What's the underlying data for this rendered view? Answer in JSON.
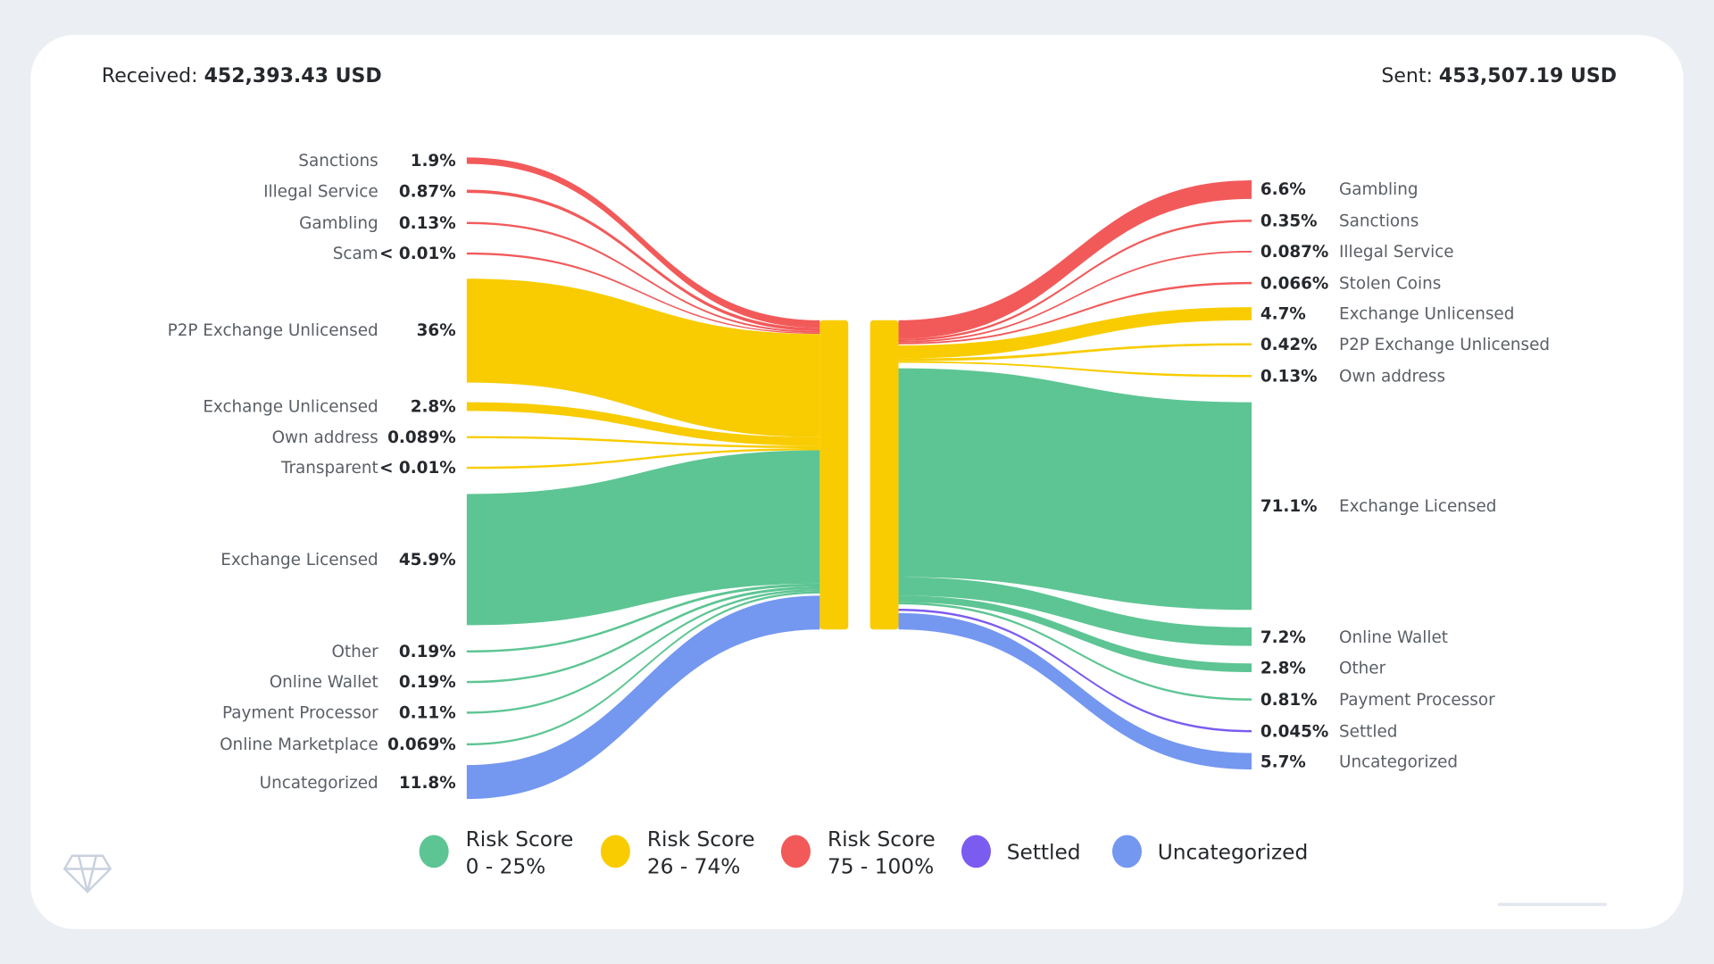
{
  "header": {
    "received_label": "Received:",
    "received_value": "452,393.43 USD",
    "sent_label": "Sent:",
    "sent_value": "453,507.19 USD"
  },
  "colors": {
    "risk_low": "#5DC593",
    "risk_medium": "#F8CC00",
    "risk_high": "#F25A5A",
    "settled": "#7B5CF0",
    "uncategorized": "#7497F0",
    "background": "#EBEEF3"
  },
  "logo_icon": "diamond-icon",
  "chart_data": {
    "type": "sankey",
    "received": [
      {
        "label": "Sanctions",
        "pct": "1.9%",
        "category": "risk_high"
      },
      {
        "label": "Illegal Service",
        "pct": "0.87%",
        "category": "risk_high"
      },
      {
        "label": "Gambling",
        "pct": "0.13%",
        "category": "risk_high"
      },
      {
        "label": "Scam",
        "pct": "< 0.01%",
        "category": "risk_high"
      },
      {
        "label": "P2P Exchange Unlicensed",
        "pct": "36%",
        "category": "risk_medium"
      },
      {
        "label": "Exchange Unlicensed",
        "pct": "2.8%",
        "category": "risk_medium"
      },
      {
        "label": "Own address",
        "pct": "0.089%",
        "category": "risk_medium"
      },
      {
        "label": "Transparent",
        "pct": "< 0.01%",
        "category": "risk_medium"
      },
      {
        "label": "Exchange Licensed",
        "pct": "45.9%",
        "category": "risk_low"
      },
      {
        "label": "Other",
        "pct": "0.19%",
        "category": "risk_low"
      },
      {
        "label": "Online Wallet",
        "pct": "0.19%",
        "category": "risk_low"
      },
      {
        "label": "Payment Processor",
        "pct": "0.11%",
        "category": "risk_low"
      },
      {
        "label": "Online Marketplace",
        "pct": "0.069%",
        "category": "risk_low"
      },
      {
        "label": "Uncategorized",
        "pct": "11.8%",
        "category": "uncategorized"
      }
    ],
    "sent": [
      {
        "label": "Gambling",
        "pct": "6.6%",
        "category": "risk_high"
      },
      {
        "label": "Sanctions",
        "pct": "0.35%",
        "category": "risk_high"
      },
      {
        "label": "Illegal Service",
        "pct": "0.087%",
        "category": "risk_high"
      },
      {
        "label": "Stolen Coins",
        "pct": "0.066%",
        "category": "risk_high"
      },
      {
        "label": "Exchange Unlicensed",
        "pct": "4.7%",
        "category": "risk_medium"
      },
      {
        "label": "P2P Exchange Unlicensed",
        "pct": "0.42%",
        "category": "risk_medium"
      },
      {
        "label": "Own address",
        "pct": "0.13%",
        "category": "risk_medium"
      },
      {
        "label": "Exchange Licensed",
        "pct": "71.1%",
        "category": "risk_low"
      },
      {
        "label": "Online Wallet",
        "pct": "7.2%",
        "category": "risk_low"
      },
      {
        "label": "Other",
        "pct": "2.8%",
        "category": "risk_low"
      },
      {
        "label": "Payment Processor",
        "pct": "0.81%",
        "category": "risk_low"
      },
      {
        "label": "Settled",
        "pct": "0.045%",
        "category": "settled"
      },
      {
        "label": "Uncategorized",
        "pct": "5.7%",
        "category": "uncategorized"
      }
    ],
    "legend": [
      {
        "line1": "Risk Score",
        "line2": "0 - 25%",
        "category": "risk_low"
      },
      {
        "line1": "Risk Score",
        "line2": "26 - 74%",
        "category": "risk_medium"
      },
      {
        "line1": "Risk Score",
        "line2": "75 - 100%",
        "category": "risk_high"
      },
      {
        "line1": "Settled",
        "line2": "",
        "category": "settled"
      },
      {
        "line1": "Uncategorized",
        "line2": "",
        "category": "uncategorized"
      }
    ]
  }
}
